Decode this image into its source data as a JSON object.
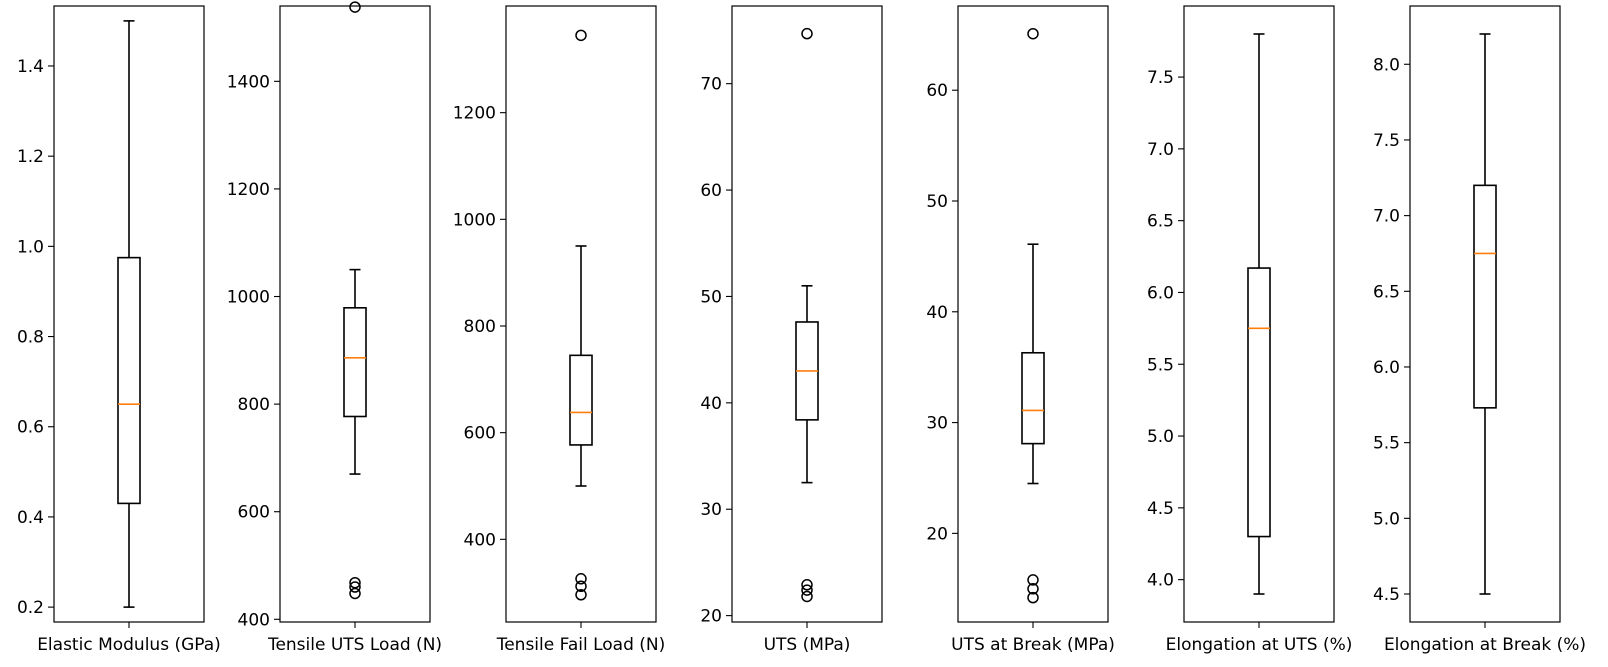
{
  "chart_data": [
    {
      "type": "box",
      "xlabel": "Elastic Modulus (GPa)",
      "ylim": [
        0.167,
        1.533
      ],
      "yticks": [
        0.2,
        0.4,
        0.6,
        0.8,
        1.0,
        1.2,
        1.4
      ],
      "ytick_labels": [
        "0.2",
        "0.4",
        "0.6",
        "0.8",
        "1.0",
        "1.2",
        "1.4"
      ],
      "stats": {
        "whislo": 0.2,
        "q1": 0.43,
        "med": 0.65,
        "q3": 0.975,
        "whishi": 1.5
      },
      "fliers": []
    },
    {
      "type": "box",
      "xlabel": "Tensile UTS Load (N)",
      "ylim": [
        395,
        1540
      ],
      "yticks": [
        400,
        600,
        800,
        1000,
        1200,
        1400
      ],
      "ytick_labels": [
        "400",
        "600",
        "800",
        "1000",
        "1200",
        "1400"
      ],
      "stats": {
        "whislo": 670,
        "q1": 777,
        "med": 886,
        "q3": 979,
        "whishi": 1050
      },
      "fliers": [
        448,
        460,
        468,
        1538
      ]
    },
    {
      "type": "box",
      "xlabel": "Tensile Fail Load (N)",
      "ylim": [
        245,
        1400
      ],
      "yticks": [
        400,
        600,
        800,
        1000,
        1200
      ],
      "ytick_labels": [
        "400",
        "600",
        "800",
        "1000",
        "1200"
      ],
      "stats": {
        "whislo": 500,
        "q1": 577,
        "med": 638,
        "q3": 745,
        "whishi": 950
      },
      "fliers": [
        296,
        312,
        326,
        1345
      ]
    },
    {
      "type": "box",
      "xlabel": "UTS (MPa)",
      "ylim": [
        19.4,
        77.3
      ],
      "yticks": [
        20,
        30,
        40,
        50,
        60,
        70
      ],
      "ytick_labels": [
        "20",
        "30",
        "40",
        "50",
        "60",
        "70"
      ],
      "stats": {
        "whislo": 32.5,
        "q1": 38.4,
        "med": 43.0,
        "q3": 47.6,
        "whishi": 51.0
      },
      "fliers": [
        21.8,
        22.4,
        22.9,
        74.7
      ]
    },
    {
      "type": "box",
      "xlabel": "UTS at Break (MPa)",
      "ylim": [
        12.0,
        67.6
      ],
      "yticks": [
        20,
        30,
        40,
        50,
        60
      ],
      "ytick_labels": [
        "20",
        "30",
        "40",
        "50",
        "60"
      ],
      "stats": {
        "whislo": 24.5,
        "q1": 28.1,
        "med": 31.1,
        "q3": 36.3,
        "whishi": 46.1
      },
      "fliers": [
        14.2,
        15.0,
        15.8,
        65.1
      ]
    },
    {
      "type": "box",
      "xlabel": "Elongation at UTS (%)",
      "ylim": [
        3.705,
        7.995
      ],
      "yticks": [
        4.0,
        4.5,
        5.0,
        5.5,
        6.0,
        6.5,
        7.0,
        7.5
      ],
      "ytick_labels": [
        "4.0",
        "4.5",
        "5.0",
        "5.5",
        "6.0",
        "6.5",
        "7.0",
        "7.5"
      ],
      "stats": {
        "whislo": 3.9,
        "q1": 4.3,
        "med": 5.75,
        "q3": 6.17,
        "whishi": 7.8
      },
      "fliers": []
    },
    {
      "type": "box",
      "xlabel": "Elongation at Break (%)",
      "ylim": [
        4.315,
        8.385
      ],
      "yticks": [
        4.5,
        5.0,
        5.5,
        6.0,
        6.5,
        7.0,
        7.5,
        8.0
      ],
      "ytick_labels": [
        "4.5",
        "5.0",
        "5.5",
        "6.0",
        "6.5",
        "7.0",
        "7.5",
        "8.0"
      ],
      "stats": {
        "whislo": 4.5,
        "q1": 5.73,
        "med": 6.75,
        "q3": 7.2,
        "whishi": 8.2
      },
      "fliers": []
    }
  ],
  "colors": {
    "box": "#000000",
    "median": "#ff7f0e",
    "flier": "#000000",
    "axes": "#000000",
    "background": "#ffffff"
  }
}
